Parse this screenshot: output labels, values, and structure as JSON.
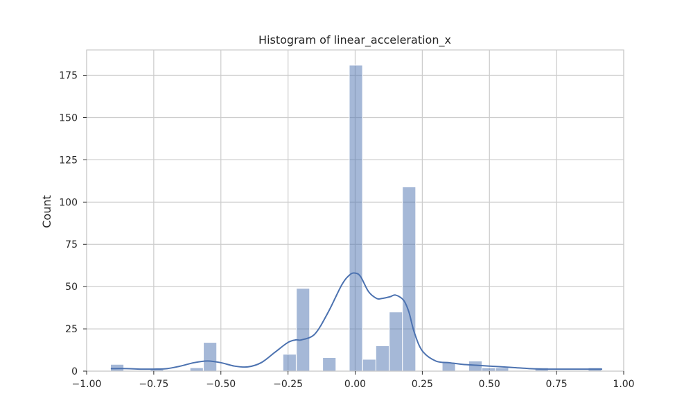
{
  "chart_data": {
    "type": "bar",
    "title": "Histogram of linear_acceleration_x",
    "xlabel": "",
    "ylabel": "Count",
    "xlim": [
      -1.0,
      1.0
    ],
    "ylim": [
      0,
      190
    ],
    "grid": true,
    "x_ticks": [
      -1.0,
      -0.75,
      -0.5,
      -0.25,
      0.0,
      0.25,
      0.5,
      0.75,
      1.0
    ],
    "x_tick_labels": [
      "−1.00",
      "−0.75",
      "−0.50",
      "−0.25",
      "0.00",
      "0.25",
      "0.50",
      "0.75",
      "1.00"
    ],
    "y_ticks": [
      0,
      25,
      50,
      75,
      100,
      125,
      150,
      175
    ],
    "y_tick_labels": [
      "0",
      "25",
      "50",
      "75",
      "100",
      "125",
      "150",
      "175"
    ],
    "bar_color": "#4c72b0",
    "bin_width": 0.0494,
    "bins": [
      {
        "x0": -0.911,
        "count": 4
      },
      {
        "x0": -0.862,
        "count": 0
      },
      {
        "x0": -0.812,
        "count": 0
      },
      {
        "x0": -0.763,
        "count": 1
      },
      {
        "x0": -0.713,
        "count": 0
      },
      {
        "x0": -0.664,
        "count": 0
      },
      {
        "x0": -0.615,
        "count": 2
      },
      {
        "x0": -0.565,
        "count": 17
      },
      {
        "x0": -0.516,
        "count": 0
      },
      {
        "x0": -0.466,
        "count": 0
      },
      {
        "x0": -0.417,
        "count": 0
      },
      {
        "x0": -0.368,
        "count": 0
      },
      {
        "x0": -0.318,
        "count": 0
      },
      {
        "x0": -0.269,
        "count": 10
      },
      {
        "x0": -0.219,
        "count": 49
      },
      {
        "x0": -0.17,
        "count": 0
      },
      {
        "x0": -0.121,
        "count": 8
      },
      {
        "x0": -0.071,
        "count": 0
      },
      {
        "x0": -0.022,
        "count": 181
      },
      {
        "x0": 0.028,
        "count": 7
      },
      {
        "x0": 0.077,
        "count": 15
      },
      {
        "x0": 0.127,
        "count": 35
      },
      {
        "x0": 0.176,
        "count": 109
      },
      {
        "x0": 0.225,
        "count": 0
      },
      {
        "x0": 0.275,
        "count": 0
      },
      {
        "x0": 0.324,
        "count": 5
      },
      {
        "x0": 0.374,
        "count": 0
      },
      {
        "x0": 0.423,
        "count": 6
      },
      {
        "x0": 0.472,
        "count": 2
      },
      {
        "x0": 0.522,
        "count": 2
      },
      {
        "x0": 0.571,
        "count": 0
      },
      {
        "x0": 0.621,
        "count": 0
      },
      {
        "x0": 0.67,
        "count": 2
      },
      {
        "x0": 0.719,
        "count": 0
      },
      {
        "x0": 0.769,
        "count": 0
      },
      {
        "x0": 0.818,
        "count": 0
      },
      {
        "x0": 0.868,
        "count": 2
      }
    ],
    "kde": {
      "color": "#4c72b0",
      "x": [
        -0.91,
        -0.85,
        -0.8,
        -0.75,
        -0.7,
        -0.65,
        -0.6,
        -0.55,
        -0.5,
        -0.45,
        -0.4,
        -0.35,
        -0.3,
        -0.25,
        -0.22,
        -0.2,
        -0.15,
        -0.1,
        -0.05,
        -0.02,
        0.0,
        0.02,
        0.05,
        0.08,
        0.1,
        0.13,
        0.15,
        0.18,
        0.2,
        0.22,
        0.25,
        0.3,
        0.35,
        0.4,
        0.45,
        0.5,
        0.55,
        0.6,
        0.65,
        0.7,
        0.75,
        0.8,
        0.85,
        0.92
      ],
      "y": [
        1.5,
        1.5,
        1.2,
        1.2,
        1.5,
        3,
        5,
        6,
        5,
        3,
        2.5,
        5,
        11,
        17,
        18.5,
        18.5,
        22,
        35,
        51,
        57,
        58,
        56,
        47,
        43,
        43,
        44,
        45,
        42,
        35,
        23,
        12,
        6,
        5,
        4,
        3.5,
        3,
        2.5,
        2,
        1.5,
        1.2,
        1.2,
        1.2,
        1.2,
        1.2
      ]
    }
  }
}
